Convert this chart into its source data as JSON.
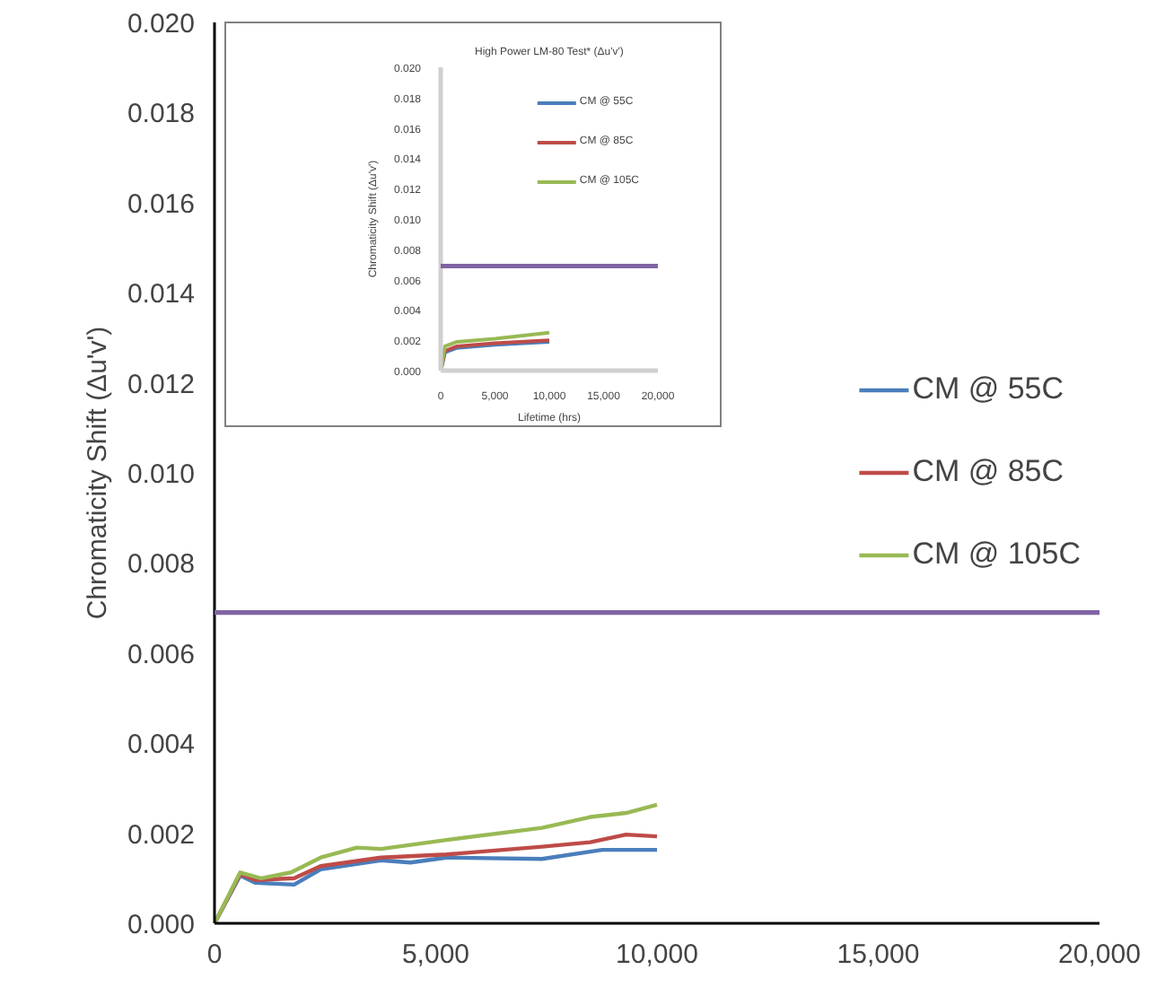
{
  "chart_data": [
    {
      "type": "line",
      "ylabel": "Chromaticity Shift (Δu'v')",
      "xlim": [
        0,
        20000
      ],
      "xticks": [
        {
          "value": 0,
          "label": "0"
        },
        {
          "value": 5000,
          "label": "5,000"
        },
        {
          "value": 10000,
          "label": "10,000"
        },
        {
          "value": 15000,
          "label": "15,000"
        },
        {
          "value": 20000,
          "label": "20,000"
        }
      ],
      "ylim": [
        0,
        0.02
      ],
      "yticks": [
        {
          "value": 0,
          "label": "0.000"
        },
        {
          "value": 0.002,
          "label": "0.002"
        },
        {
          "value": 0.004,
          "label": "0.004"
        },
        {
          "value": 0.006,
          "label": "0.006"
        },
        {
          "value": 0.008,
          "label": "0.008"
        },
        {
          "value": 0.01,
          "label": "0.010"
        },
        {
          "value": 0.012,
          "label": "0.012"
        },
        {
          "value": 0.014,
          "label": "0.014"
        },
        {
          "value": 0.016,
          "label": "0.016"
        },
        {
          "value": 0.018,
          "label": "0.018"
        },
        {
          "value": 0.02,
          "label": "0.020"
        }
      ],
      "grid": false,
      "legend": "right",
      "marker": "none",
      "line_style": "solid",
      "ref_lines": [
        {
          "axis": "y",
          "value": 0.0069,
          "label": null,
          "color": "#8064a2"
        }
      ],
      "series": [
        {
          "name": "CM @ 55C",
          "color": "#4a7ebb",
          "x": [
            0,
            580,
            920,
            1800,
            2400,
            3760,
            4430,
            5240,
            7400,
            8760,
            10000
          ],
          "values": [
            0,
            0.00106,
            0.0009,
            0.00086,
            0.0012,
            0.0014,
            0.00135,
            0.00146,
            0.00143,
            0.00163,
            0.00163
          ]
        },
        {
          "name": "CM @ 85C",
          "color": "#be4b48",
          "x": [
            0,
            580,
            920,
            1800,
            2400,
            3760,
            5240,
            7400,
            8490,
            9300,
            10000
          ],
          "values": [
            0,
            0.00109,
            0.00096,
            0.001,
            0.00127,
            0.00146,
            0.00153,
            0.0017,
            0.0018,
            0.00197,
            0.00193
          ]
        },
        {
          "name": "CM @ 105C",
          "color": "#98b954",
          "x": [
            0,
            580,
            1050,
            1730,
            2400,
            3220,
            3760,
            5240,
            7400,
            8490,
            9300,
            10000
          ],
          "values": [
            0,
            0.00113,
            0.001,
            0.00113,
            0.00146,
            0.00168,
            0.00165,
            0.00185,
            0.00212,
            0.00236,
            0.00245,
            0.00263
          ]
        }
      ]
    },
    {
      "type": "line",
      "title": "High Power LM-80 Test* (Δu'v')",
      "xlabel": "Lifetime (hrs)",
      "ylabel": "Chromaticity Shift (Δu'v')",
      "xlim": [
        0,
        20000
      ],
      "xticks": [
        {
          "value": 0,
          "label": "0"
        },
        {
          "value": 5000,
          "label": "5,000"
        },
        {
          "value": 10000,
          "label": "10,000"
        },
        {
          "value": 15000,
          "label": "15,000"
        },
        {
          "value": 20000,
          "label": "20,000"
        }
      ],
      "ylim": [
        0,
        0.02
      ],
      "yticks": [
        {
          "value": 0,
          "label": "0.000"
        },
        {
          "value": 0.002,
          "label": "0.002"
        },
        {
          "value": 0.004,
          "label": "0.004"
        },
        {
          "value": 0.006,
          "label": "0.006"
        },
        {
          "value": 0.008,
          "label": "0.008"
        },
        {
          "value": 0.01,
          "label": "0.010"
        },
        {
          "value": 0.012,
          "label": "0.012"
        },
        {
          "value": 0.014,
          "label": "0.014"
        },
        {
          "value": 0.016,
          "label": "0.016"
        },
        {
          "value": 0.018,
          "label": "0.018"
        },
        {
          "value": 0.02,
          "label": "0.020"
        }
      ],
      "grid": false,
      "legend": "top right",
      "marker": "none",
      "line_style": "solid",
      "ref_lines": [
        {
          "axis": "y",
          "value": 0.0069,
          "label": null,
          "color": "#8064a2"
        }
      ],
      "series": [
        {
          "name": "CM @ 55C",
          "color": "#4a7ebb",
          "x": [
            0,
            400,
            1500,
            5000,
            10000
          ],
          "values": [
            0,
            0.0012,
            0.0015,
            0.0017,
            0.0019
          ]
        },
        {
          "name": "CM @ 85C",
          "color": "#be4b48",
          "x": [
            0,
            400,
            1500,
            5000,
            10000
          ],
          "values": [
            0,
            0.0013,
            0.0016,
            0.0018,
            0.002
          ]
        },
        {
          "name": "CM @ 105C",
          "color": "#98b954",
          "x": [
            0,
            400,
            1500,
            5000,
            10000
          ],
          "values": [
            0,
            0.0016,
            0.0019,
            0.0021,
            0.0025
          ]
        }
      ]
    }
  ]
}
